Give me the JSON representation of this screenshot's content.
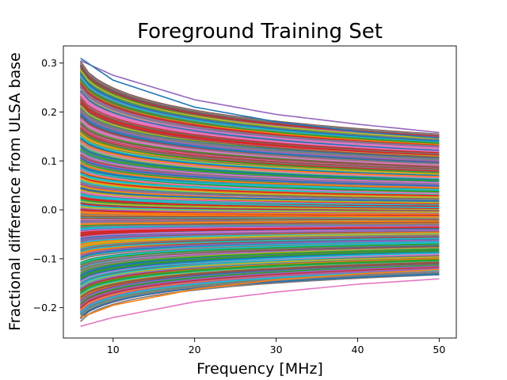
{
  "chart_data": {
    "type": "line",
    "title": "Foreground Training Set",
    "xlabel": "Frequency [MHz]",
    "ylabel": "Fractional difference from ULSA base",
    "xlim": [
      3.9,
      52.1
    ],
    "ylim": [
      -0.262,
      0.335
    ],
    "x_range": [
      6,
      50
    ],
    "xticks": [
      10,
      20,
      30,
      40,
      50
    ],
    "yticks": [
      -0.2,
      -0.1,
      0.0,
      0.1,
      0.2,
      0.3
    ],
    "ytick_labels": [
      "−0.2",
      "−0.1",
      "0.0",
      "0.1",
      "0.2",
      "0.3"
    ],
    "grid": false,
    "legend": "none",
    "series_count": 1000,
    "envelope": {
      "max_at_6": 0.31,
      "max_at_50": 0.16,
      "min_at_6": -0.24,
      "min_at_50": -0.14
    },
    "highlighted_series": [
      {
        "color": "#9467bd",
        "values": [
          [
            6,
            0.305
          ],
          [
            10,
            0.275
          ],
          [
            20,
            0.225
          ],
          [
            30,
            0.195
          ],
          [
            40,
            0.175
          ],
          [
            50,
            0.158
          ]
        ]
      },
      {
        "color": "#1f77b4",
        "values": [
          [
            6,
            0.31
          ],
          [
            10,
            0.265
          ],
          [
            20,
            0.21
          ],
          [
            30,
            0.18
          ],
          [
            40,
            0.16
          ],
          [
            50,
            0.147
          ]
        ]
      },
      {
        "color": "#e377c2",
        "values": [
          [
            6,
            -0.238
          ],
          [
            10,
            -0.22
          ],
          [
            20,
            -0.188
          ],
          [
            30,
            -0.168
          ],
          [
            40,
            -0.152
          ],
          [
            50,
            -0.141
          ]
        ]
      },
      {
        "color": "#ff7f0e",
        "values": [
          [
            6,
            -0.22
          ],
          [
            10,
            -0.195
          ],
          [
            20,
            -0.162
          ],
          [
            30,
            -0.143
          ],
          [
            40,
            -0.131
          ],
          [
            50,
            -0.122
          ]
        ]
      }
    ],
    "palette": [
      "#1f77b4",
      "#ff7f0e",
      "#2ca02c",
      "#d62728",
      "#9467bd",
      "#8c564b",
      "#e377c2",
      "#7f7f7f",
      "#bcbd22",
      "#17becf"
    ]
  }
}
